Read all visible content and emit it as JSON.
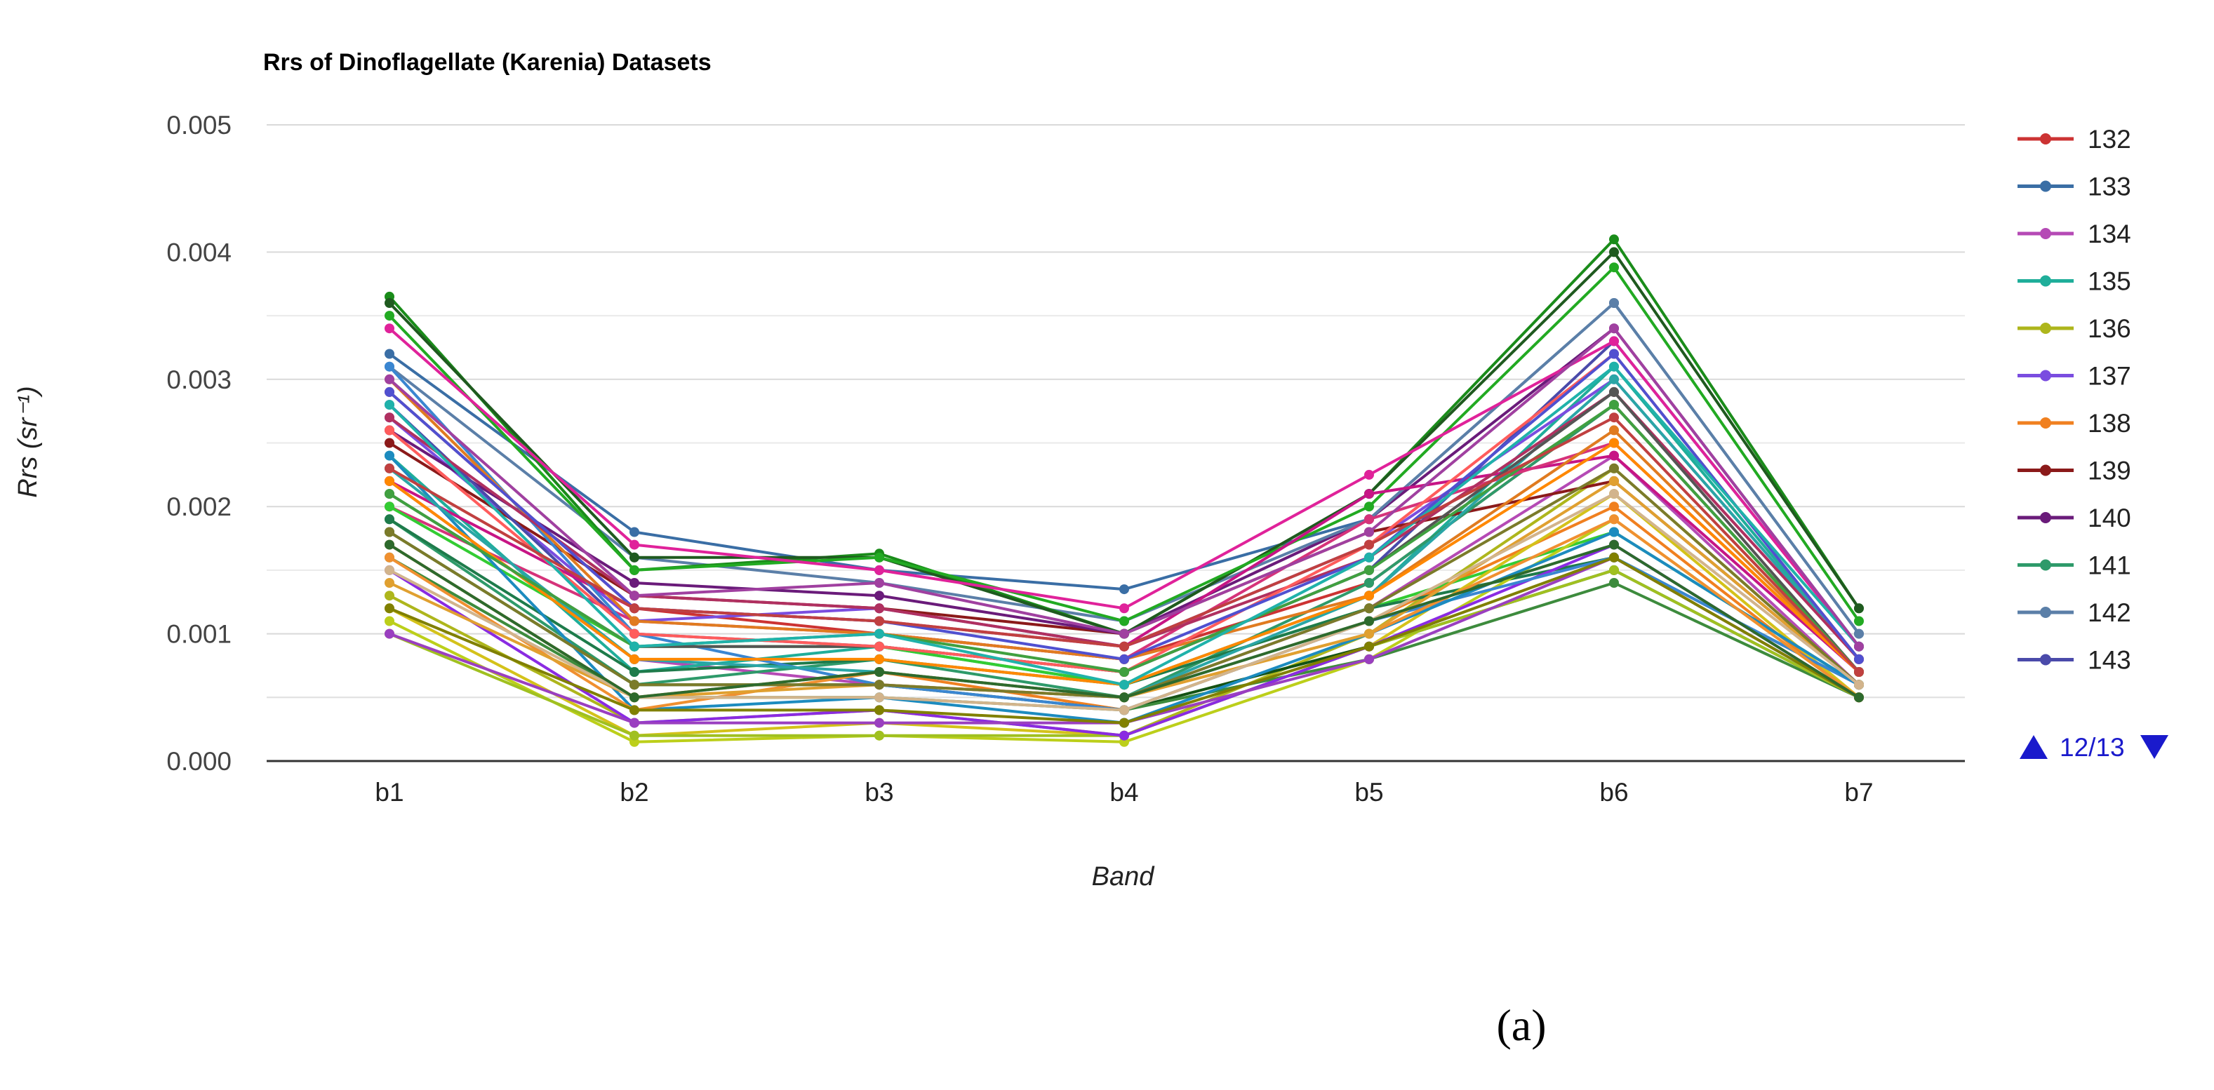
{
  "chart_data": {
    "type": "line",
    "title": "Rrs of Dinoflagellate (Karenia) Datasets",
    "xlabel": "Band",
    "ylabel": "Rrs (sr⁻¹)",
    "categories": [
      "b1",
      "b2",
      "b3",
      "b4",
      "b5",
      "b6",
      "b7"
    ],
    "ylim": [
      0,
      0.005
    ],
    "yticks": [
      "0.000",
      "0.001",
      "0.002",
      "0.003",
      "0.004",
      "0.005"
    ],
    "grid": true,
    "legend_position": "right",
    "series": [
      {
        "name": "132",
        "color": "#cc3333",
        "values": [
          0.0029,
          0.0012,
          0.001,
          0.0008,
          0.0014,
          0.0028,
          0.0007
        ]
      },
      {
        "name": "133",
        "color": "#3a6ea5",
        "values": [
          0.0032,
          0.0018,
          0.0015,
          0.00135,
          0.0019,
          0.0036,
          0.001
        ]
      },
      {
        "name": "134",
        "color": "#b54ab5",
        "values": [
          0.0022,
          0.0008,
          0.0006,
          0.0005,
          0.0012,
          0.0024,
          0.0006
        ]
      },
      {
        "name": "135",
        "color": "#1fae9a",
        "values": [
          0.0024,
          0.0007,
          0.0009,
          0.0006,
          0.0013,
          0.0031,
          0.0008
        ]
      },
      {
        "name": "136",
        "color": "#aeb61c",
        "values": [
          0.0013,
          0.0003,
          0.0004,
          0.0002,
          0.001,
          0.0023,
          0.0006
        ]
      },
      {
        "name": "137",
        "color": "#7a4de0",
        "values": [
          0.0027,
          0.0011,
          0.0012,
          0.0009,
          0.0017,
          0.003,
          0.0008
        ]
      },
      {
        "name": "138",
        "color": "#f08020",
        "values": [
          0.0017,
          0.0005,
          0.0007,
          0.0004,
          0.0011,
          0.002,
          0.0005
        ]
      },
      {
        "name": "139",
        "color": "#8b1a1a",
        "values": [
          0.0025,
          0.0013,
          0.0012,
          0.001,
          0.0018,
          0.0022,
          0.0006
        ]
      },
      {
        "name": "140",
        "color": "#6a1b7a",
        "values": [
          0.0026,
          0.0014,
          0.0013,
          0.001,
          0.0019,
          0.0034,
          0.0009
        ]
      },
      {
        "name": "141",
        "color": "#2e9a6a",
        "values": [
          0.0019,
          0.0006,
          0.0008,
          0.0005,
          0.0014,
          0.0028,
          0.0007
        ]
      },
      {
        "name": "142",
        "color": "#5b7fa8",
        "values": [
          0.0031,
          0.0016,
          0.0014,
          0.0011,
          0.0019,
          0.0036,
          0.001
        ]
      },
      {
        "name": "143",
        "color": "#4a4aaa",
        "values": [
          0.0028,
          0.001,
          0.0009,
          0.0007,
          0.0015,
          0.0033,
          0.0009
        ]
      },
      {
        "color": "#1a8c1a",
        "values": [
          0.00365,
          0.0015,
          0.00163,
          0.001,
          0.0021,
          0.0041,
          0.0012
        ]
      },
      {
        "color": "#1f5a1f",
        "values": [
          0.0036,
          0.0016,
          0.0016,
          0.001,
          0.0021,
          0.004,
          0.0012
        ]
      },
      {
        "color": "#22aa22",
        "values": [
          0.0035,
          0.0015,
          0.0016,
          0.0011,
          0.002,
          0.00388,
          0.0011
        ]
      },
      {
        "color": "#e0229a",
        "values": [
          0.0034,
          0.0017,
          0.0015,
          0.0012,
          0.00225,
          0.0033,
          0.0009
        ]
      },
      {
        "color": "#c71585",
        "values": [
          0.0022,
          0.0012,
          0.0011,
          0.0009,
          0.0021,
          0.0024,
          0.0007
        ]
      },
      {
        "color": "#d6337a",
        "values": [
          0.002,
          0.0011,
          0.001,
          0.0008,
          0.0019,
          0.0025,
          0.0007
        ]
      },
      {
        "color": "#33cc33",
        "values": [
          0.002,
          0.0009,
          0.0009,
          0.0006,
          0.0012,
          0.0018,
          0.0006
        ]
      },
      {
        "color": "#1e7b4b",
        "values": [
          0.0019,
          0.0007,
          0.0008,
          0.0006,
          0.0012,
          0.0016,
          0.0006
        ]
      },
      {
        "color": "#145214",
        "values": [
          0.0018,
          0.0006,
          0.0006,
          0.0004,
          0.0009,
          0.0015,
          0.0005
        ]
      },
      {
        "color": "#3d8b3d",
        "values": [
          0.0016,
          0.0005,
          0.0005,
          0.0004,
          0.0008,
          0.0014,
          0.0005
        ]
      },
      {
        "color": "#d4c21a",
        "values": [
          0.0012,
          0.0002,
          0.0003,
          0.0002,
          0.0009,
          0.0021,
          0.0005
        ]
      },
      {
        "color": "#bccf1a",
        "values": [
          0.0011,
          0.00015,
          0.0002,
          0.00015,
          0.0008,
          0.0019,
          0.0005
        ]
      },
      {
        "color": "#a0c020",
        "values": [
          0.001,
          0.0002,
          0.0002,
          0.0002,
          0.0009,
          0.0015,
          0.0005
        ]
      },
      {
        "color": "#8a2be2",
        "values": [
          0.0015,
          0.0003,
          0.0004,
          0.0002,
          0.0009,
          0.0017,
          0.0005
        ]
      },
      {
        "color": "#9a3fc0",
        "values": [
          0.001,
          0.0003,
          0.0003,
          0.0003,
          0.0008,
          0.0016,
          0.0005
        ]
      },
      {
        "color": "#3a86d1",
        "values": [
          0.0031,
          0.001,
          0.0006,
          0.0004,
          0.0011,
          0.0016,
          0.0006
        ]
      },
      {
        "color": "#1c8bbf",
        "values": [
          0.0024,
          0.0004,
          0.0005,
          0.0003,
          0.001,
          0.0018,
          0.0006
        ]
      },
      {
        "color": "#2aa6a6",
        "values": [
          0.0023,
          0.0008,
          0.0007,
          0.0005,
          0.0013,
          0.003,
          0.0008
        ]
      },
      {
        "color": "#e07b20",
        "values": [
          0.003,
          0.0011,
          0.001,
          0.0008,
          0.0013,
          0.0026,
          0.0007
        ]
      },
      {
        "color": "#f09030",
        "values": [
          0.0016,
          0.0004,
          0.0007,
          0.0005,
          0.001,
          0.0019,
          0.0005
        ]
      },
      {
        "color": "#e0a030",
        "values": [
          0.0014,
          0.0005,
          0.0006,
          0.0005,
          0.001,
          0.0022,
          0.0006
        ]
      },
      {
        "color": "#b03060",
        "values": [
          0.0027,
          0.0013,
          0.0012,
          0.0009,
          0.0016,
          0.0029,
          0.0008
        ]
      },
      {
        "color": "#555555",
        "values": [
          0.0021,
          0.0009,
          0.0009,
          0.0007,
          0.0015,
          0.0029,
          0.0007
        ]
      },
      {
        "color": "#7b7b2a",
        "values": [
          0.0018,
          0.0006,
          0.0006,
          0.0005,
          0.0012,
          0.0023,
          0.0006
        ]
      },
      {
        "color": "#d2b48c",
        "values": [
          0.0015,
          0.0005,
          0.0005,
          0.0004,
          0.0011,
          0.0021,
          0.0006
        ]
      },
      {
        "color": "#808000",
        "values": [
          0.0012,
          0.0004,
          0.0004,
          0.0003,
          0.0009,
          0.0016,
          0.0005
        ]
      },
      {
        "color": "#ff5c5c",
        "values": [
          0.0026,
          0.001,
          0.0009,
          0.0007,
          0.0017,
          0.0032,
          0.0008
        ]
      },
      {
        "color": "#ff8800",
        "values": [
          0.0022,
          0.0008,
          0.0008,
          0.0006,
          0.0013,
          0.0025,
          0.0007
        ]
      },
      {
        "color": "#5050d0",
        "values": [
          0.0029,
          0.0012,
          0.0011,
          0.0008,
          0.0016,
          0.0032,
          0.0008
        ]
      },
      {
        "color": "#40a040",
        "values": [
          0.0021,
          0.0009,
          0.001,
          0.0007,
          0.0015,
          0.0028,
          0.0007
        ]
      },
      {
        "color": "#20b2aa",
        "values": [
          0.0028,
          0.0009,
          0.001,
          0.0006,
          0.0016,
          0.0031,
          0.0009
        ]
      },
      {
        "color": "#c04040",
        "values": [
          0.0023,
          0.0012,
          0.0011,
          0.0009,
          0.0017,
          0.0027,
          0.0007
        ]
      },
      {
        "color": "#a040a0",
        "values": [
          0.003,
          0.0013,
          0.0014,
          0.001,
          0.0018,
          0.0034,
          0.0009
        ]
      },
      {
        "color": "#2d6a2d",
        "values": [
          0.0017,
          0.0005,
          0.0007,
          0.0005,
          0.0011,
          0.0017,
          0.0005
        ]
      }
    ]
  },
  "legend": {
    "items": [
      "132",
      "133",
      "134",
      "135",
      "136",
      "137",
      "138",
      "139",
      "140",
      "141",
      "142",
      "143"
    ]
  },
  "pager": {
    "label": "12/13",
    "color": "#1a1acc"
  },
  "caption": "(a)"
}
